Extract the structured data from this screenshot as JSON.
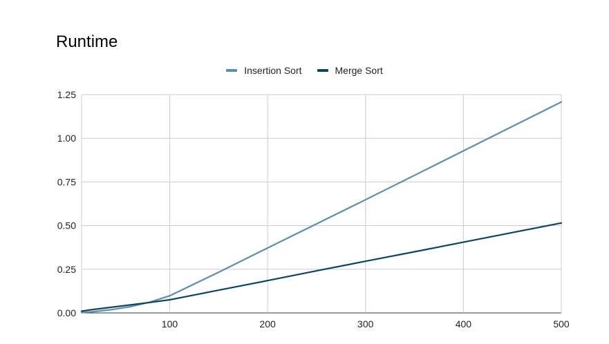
{
  "chart_data": {
    "type": "line",
    "title": "Runtime",
    "xlabel": "",
    "ylabel": "",
    "xlim": [
      10,
      500
    ],
    "ylim": [
      0,
      1.25
    ],
    "x_ticks": [
      100,
      200,
      300,
      400,
      500
    ],
    "y_ticks": [
      0.0,
      0.25,
      0.5,
      0.75,
      1.0,
      1.25
    ],
    "x_tick_labels": [
      "100",
      "200",
      "300",
      "400",
      "500"
    ],
    "y_tick_labels": [
      "0.00",
      "0.25",
      "0.50",
      "0.75",
      "1.00",
      "1.25"
    ],
    "grid": true,
    "legend_position": "top-center",
    "series": [
      {
        "name": "Insertion Sort",
        "color": "#5b8fa8",
        "x": [
          10,
          20,
          40,
          60,
          80,
          100,
          150,
          200,
          250,
          300,
          350,
          400,
          450,
          500
        ],
        "y": [
          0.002,
          0.006,
          0.018,
          0.036,
          0.062,
          0.098,
          0.233,
          0.372,
          0.51,
          0.648,
          0.788,
          0.928,
          1.068,
          1.208
        ]
      },
      {
        "name": "Merge Sort",
        "color": "#0b4560",
        "x": [
          10,
          20,
          40,
          60,
          80,
          100,
          150,
          200,
          250,
          300,
          350,
          400,
          450,
          500
        ],
        "y": [
          0.01,
          0.018,
          0.032,
          0.046,
          0.06,
          0.075,
          0.13,
          0.185,
          0.241,
          0.296,
          0.35,
          0.405,
          0.46,
          0.515
        ]
      }
    ]
  }
}
